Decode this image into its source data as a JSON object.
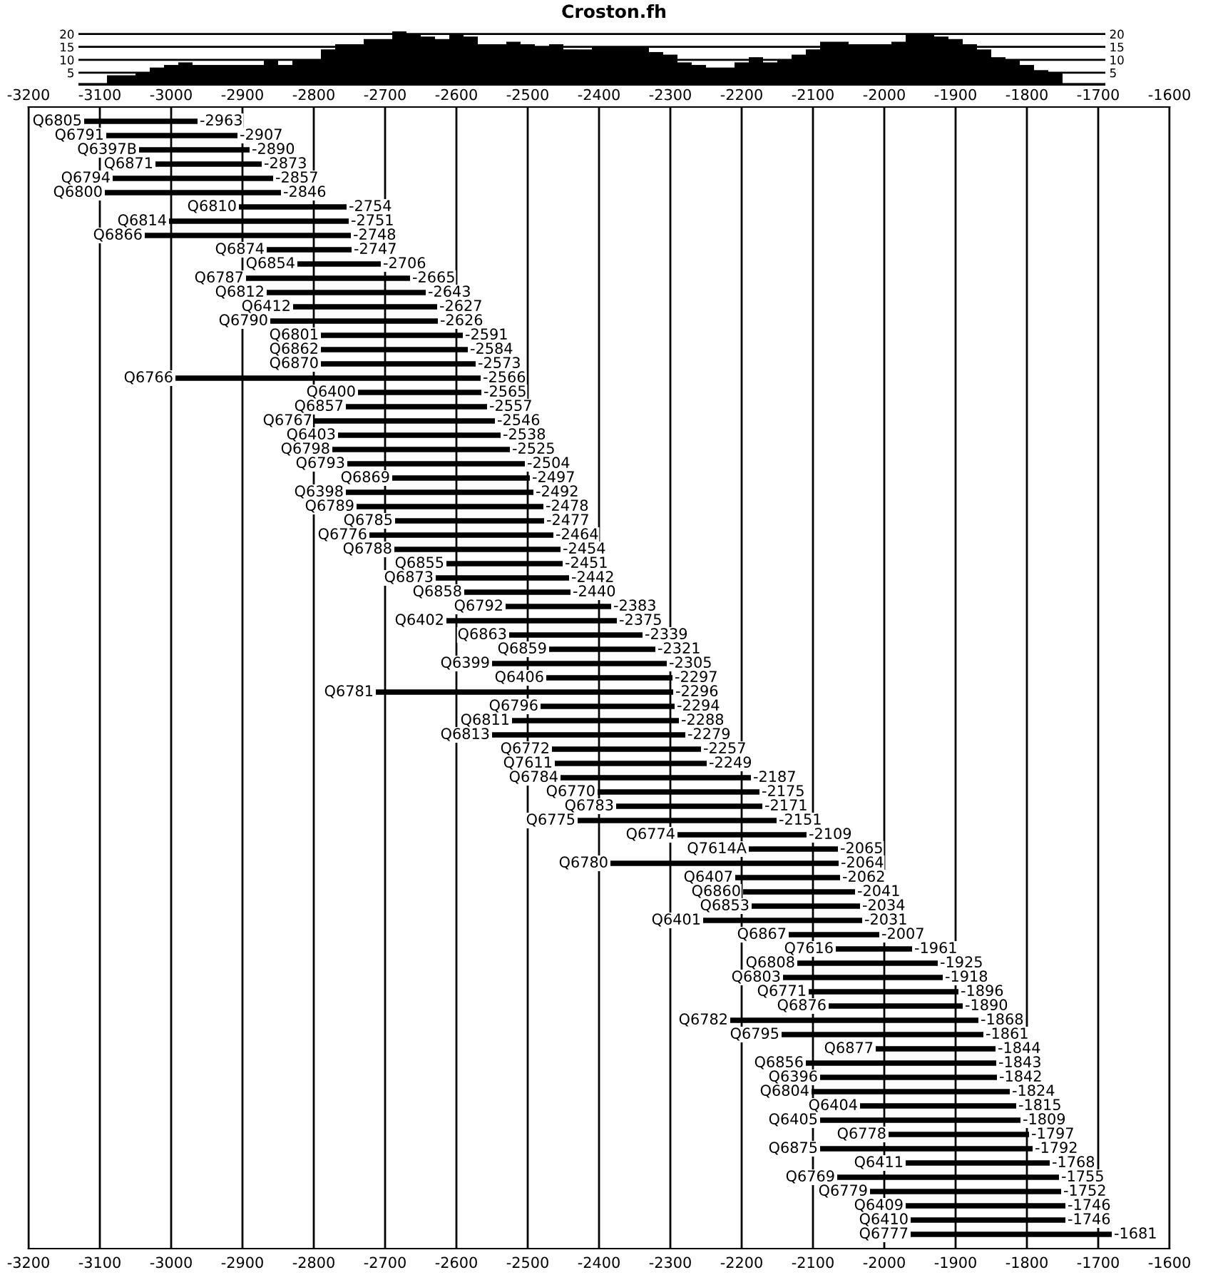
{
  "chart_data": [
    {
      "type": "bar",
      "title": "Croston.fh",
      "color": "#000000",
      "ylim": [
        0,
        21
      ],
      "yticks": [
        5,
        10,
        15,
        20
      ],
      "y2lim": [
        0,
        21
      ],
      "y2ticks": [
        5,
        10,
        15,
        20
      ],
      "grid": "y",
      "tick_labels": "y",
      "categories": [
        null,
        null,
        null,
        null,
        null,
        null,
        null,
        null,
        null,
        null,
        null,
        null,
        null,
        null,
        null,
        null,
        null,
        null,
        null,
        null,
        null,
        null,
        null,
        null,
        null,
        null,
        null,
        null,
        null,
        null,
        null,
        null,
        null,
        null,
        null,
        null,
        null,
        null,
        null,
        null,
        null,
        null,
        null,
        null,
        null,
        null,
        null,
        null,
        null,
        null,
        null,
        null,
        null,
        null,
        null,
        null,
        null,
        null,
        null,
        null,
        null,
        null,
        null,
        null,
        null,
        null,
        null,
        null,
        null,
        null,
        null,
        null
      ],
      "values": [
        1,
        1,
        4,
        4,
        5,
        7,
        8,
        9,
        8,
        8,
        8,
        8,
        8,
        10,
        8,
        10,
        10,
        14,
        16,
        16,
        18,
        18,
        21,
        20,
        19,
        18,
        20,
        19,
        16,
        16,
        17,
        16,
        15,
        16,
        14,
        14,
        15,
        15,
        15,
        15,
        13,
        12,
        9,
        8,
        7,
        7,
        9,
        11,
        9,
        10,
        12,
        14,
        17,
        17,
        16,
        16,
        16,
        17,
        20,
        20,
        19,
        18,
        16,
        14,
        11,
        10,
        8,
        6,
        5,
        1,
        1,
        1
      ]
    },
    {
      "type": "bar",
      "orientation": "horizontal",
      "color": "#000000",
      "grid": "x",
      "xlim": [
        -3200,
        -1600
      ],
      "xticks": [
        -3200,
        -3100,
        -3000,
        -2900,
        -2800,
        -2700,
        -2600,
        -2500,
        -2400,
        -2300,
        -2200,
        -2100,
        -2000,
        -1900,
        -1800,
        -1700,
        -1600
      ],
      "x2lim": [
        -3200,
        -1600
      ],
      "x2ticks": [
        -3200,
        -3100,
        -3000,
        -2900,
        -2800,
        -2700,
        -2600,
        -2500,
        -2400,
        -2300,
        -2200,
        -2100,
        -2000,
        -1900,
        -1800,
        -1700,
        -1600
      ],
      "categories": [
        "Q6805",
        "Q6791",
        "Q6397B",
        "Q6871",
        "Q6794",
        "Q6800",
        "Q6810",
        "Q6814",
        "Q6866",
        "Q6874",
        "Q6854",
        "Q6787",
        "Q6812",
        "Q6412",
        "Q6790",
        "Q6801",
        "Q6862",
        "Q6870",
        "Q6766",
        "Q6400",
        "Q6857",
        "Q6767",
        "Q6403",
        "Q6798",
        "Q6793",
        "Q6869",
        "Q6398",
        "Q6789",
        "Q6785",
        "Q6776",
        "Q6788",
        "Q6855",
        "Q6873",
        "Q6858",
        "Q6792",
        "Q6402",
        "Q6863",
        "Q6859",
        "Q6399",
        "Q6406",
        "Q6781",
        "Q6796",
        "Q6811",
        "Q6813",
        "Q6772",
        "Q7611",
        "Q6784",
        "Q6770",
        "Q6783",
        "Q6775",
        "Q6774",
        "Q7614A",
        "Q6780",
        "Q6407",
        "Q6860",
        "Q6853",
        "Q6401",
        "Q6867",
        "Q7616",
        "Q6808",
        "Q6803",
        "Q6771",
        "Q6876",
        "Q6782",
        "Q6795",
        "Q6877",
        "Q6856",
        "Q6396",
        "Q6804",
        "Q6404",
        "Q6405",
        "Q6778",
        "Q6875",
        "Q6411",
        "Q6769",
        "Q6779",
        "Q6409",
        "Q6410",
        "Q6777"
      ],
      "base": [
        -3122,
        -3091,
        -3045,
        -3022,
        -3082,
        -3093,
        -2905,
        -3003,
        -3037,
        -2866,
        -2823,
        -2895,
        -2866,
        -2829,
        -2861,
        -2790,
        -2790,
        -2790,
        -2994,
        -2738,
        -2755,
        -2799,
        -2766,
        -2774,
        -2753,
        -2690,
        -2755,
        -2740,
        -2686,
        -2722,
        -2687,
        -2614,
        -2629,
        -2589,
        -2531,
        -2614,
        -2526,
        -2470,
        -2550,
        -2474,
        -2713,
        -2482,
        -2522,
        -2550,
        -2466,
        -2462,
        -2454,
        -2402,
        -2376,
        -2430,
        -2290,
        -2190,
        -2384,
        -2209,
        -2198,
        -2186,
        -2254,
        -2134,
        -2068,
        -2122,
        -2142,
        -2106,
        -2078,
        -2216,
        -2144,
        -2012,
        -2110,
        -2090,
        -2102,
        -2034,
        -2090,
        -1994,
        -2090,
        -1970,
        -2066,
        -2020,
        -1970,
        -1963,
        -1963
      ],
      "values": [
        159,
        184,
        155,
        149,
        225,
        247,
        151,
        252,
        289,
        119,
        117,
        230,
        223,
        202,
        235,
        199,
        206,
        217,
        428,
        173,
        198,
        253,
        228,
        249,
        249,
        193,
        263,
        262,
        209,
        258,
        233,
        163,
        187,
        149,
        148,
        239,
        187,
        149,
        245,
        177,
        417,
        188,
        234,
        271,
        209,
        213,
        267,
        227,
        205,
        279,
        181,
        125,
        320,
        147,
        157,
        152,
        223,
        127,
        107,
        197,
        224,
        210,
        188,
        348,
        283,
        168,
        267,
        248,
        278,
        219,
        281,
        197,
        298,
        202,
        311,
        268,
        224,
        217,
        282
      ],
      "value_labels": [
        "-2963",
        "-2907",
        "-2890",
        "-2873",
        "-2857",
        "-2846",
        "-2754",
        "-2751",
        "-2748",
        "-2747",
        "-2706",
        "-2665",
        "-2643",
        "-2627",
        "-2626",
        "-2591",
        "-2584",
        "-2573",
        "-2566",
        "-2565",
        "-2557",
        "-2546",
        "-2538",
        "-2525",
        "-2504",
        "-2497",
        "-2492",
        "-2478",
        "-2477",
        "-2464",
        "-2454",
        "-2451",
        "-2442",
        "-2440",
        "-2383",
        "-2375",
        "-2339",
        "-2321",
        "-2305",
        "-2297",
        "-2296",
        "-2294",
        "-2288",
        "-2279",
        "-2257",
        "-2249",
        "-2187",
        "-2175",
        "-2171",
        "-2151",
        "-2109",
        "-2065",
        "-2064",
        "-2062",
        "-2041",
        "-2034",
        "-2031",
        "-2007",
        "-1961",
        "-1925",
        "-1918",
        "-1896",
        "-1890",
        "-1868",
        "-1861",
        "-1844",
        "-1843",
        "-1842",
        "-1824",
        "-1815",
        "-1809",
        "-1797",
        "-1792",
        "-1768",
        "-1755",
        "-1752",
        "-1746",
        "-1746",
        "-1681"
      ]
    }
  ]
}
